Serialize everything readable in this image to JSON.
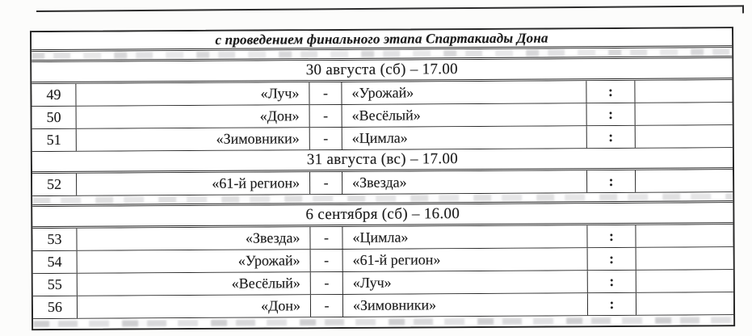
{
  "page": {
    "background": "#fcfcfb",
    "ink_color": "#1c1c1c",
    "border_color": "#262626"
  },
  "document": {
    "title_line": "с проведением финального этапа Спартакиады Дона",
    "separators": {
      "dash": "-",
      "colon": ":"
    },
    "sections": [
      {
        "date_header": "30 августа (сб) – 17.00",
        "matches": [
          {
            "num": "49",
            "home": "«Луч»",
            "away": "«Урожай»"
          },
          {
            "num": "50",
            "home": "«Дон»",
            "away": "«Весёлый»"
          },
          {
            "num": "51",
            "home": "«Зимовники»",
            "away": "«Цимла»"
          }
        ]
      },
      {
        "date_header": "31 августа (вс) – 17.00",
        "matches": [
          {
            "num": "52",
            "home": "«61-й регион»",
            "away": "«Звезда»"
          }
        ]
      },
      {
        "date_header": "6 сентября (сб) – 16.00",
        "matches": [
          {
            "num": "53",
            "home": "«Звезда»",
            "away": "«Цимла»"
          },
          {
            "num": "54",
            "home": "«Урожай»",
            "away": "«61-й регион»"
          },
          {
            "num": "55",
            "home": "«Весёлый»",
            "away": "«Луч»"
          },
          {
            "num": "56",
            "home": "«Дон»",
            "away": "«Зимовники»"
          }
        ]
      }
    ]
  }
}
